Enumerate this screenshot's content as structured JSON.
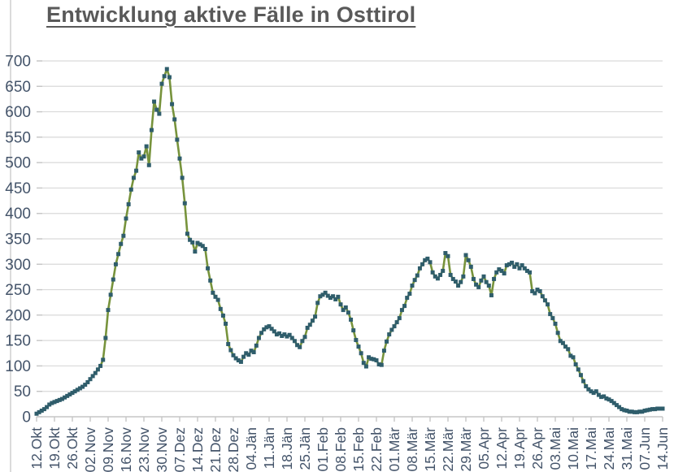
{
  "chart_data": {
    "type": "line",
    "title": "Entwicklung aktive Fälle in Osttirol",
    "xlabel": "",
    "ylabel": "",
    "ylim": [
      0,
      700
    ],
    "ytick_step": 50,
    "grid": true,
    "legend": "none",
    "marker_shape": "square",
    "x_tick_interval_days": 7,
    "x_tick_labels": [
      "12.Okt",
      "19.Okt",
      "26.Okt",
      "02.Nov",
      "09.Nov",
      "16.Nov",
      "23.Nov",
      "30.Nov",
      "07.Dez",
      "14.Dez",
      "21.Dez",
      "28.Dez",
      "04.Jän",
      "11.Jän",
      "18.Jän",
      "25.Jän",
      "01.Feb",
      "08.Feb",
      "15.Feb",
      "22.Feb",
      "01.Mär",
      "08.Mär",
      "15.Mär",
      "22.Mär",
      "29.Mär",
      "05.Apr",
      "12.Apr",
      "19.Apr",
      "26.Apr",
      "03.Mai",
      "10.Mai",
      "17.Mai",
      "24.Mai",
      "31.Mai",
      "07.Jun",
      "14.Jun"
    ],
    "values": [
      6,
      9,
      12,
      15,
      19,
      24,
      27,
      29,
      31,
      33,
      35,
      38,
      41,
      44,
      47,
      50,
      53,
      56,
      59,
      63,
      68,
      74,
      80,
      86,
      93,
      100,
      112,
      155,
      210,
      240,
      270,
      300,
      320,
      340,
      356,
      390,
      418,
      447,
      470,
      484,
      520,
      508,
      512,
      532,
      495,
      564,
      620,
      604,
      596,
      655,
      670,
      684,
      668,
      615,
      585,
      545,
      508,
      470,
      420,
      360,
      348,
      343,
      325,
      342,
      339,
      336,
      330,
      292,
      268,
      244,
      236,
      230,
      212,
      199,
      183,
      143,
      131,
      121,
      115,
      111,
      108,
      118,
      125,
      122,
      130,
      127,
      140,
      155,
      165,
      172,
      176,
      178,
      173,
      168,
      162,
      164,
      159,
      162,
      158,
      161,
      155,
      149,
      141,
      137,
      149,
      157,
      175,
      181,
      189,
      197,
      224,
      237,
      240,
      244,
      238,
      234,
      237,
      231,
      236,
      221,
      210,
      215,
      205,
      191,
      170,
      151,
      138,
      125,
      106,
      99,
      117,
      114,
      113,
      111,
      103,
      102,
      130,
      148,
      162,
      171,
      178,
      186,
      194,
      210,
      218,
      234,
      242,
      258,
      269,
      278,
      292,
      300,
      308,
      311,
      304,
      284,
      276,
      272,
      279,
      287,
      322,
      316,
      279,
      271,
      266,
      258,
      265,
      276,
      318,
      308,
      295,
      271,
      260,
      255,
      268,
      276,
      265,
      258,
      239,
      271,
      284,
      290,
      287,
      282,
      298,
      300,
      303,
      295,
      300,
      292,
      298,
      292,
      287,
      284,
      247,
      243,
      250,
      247,
      237,
      229,
      221,
      202,
      194,
      183,
      165,
      149,
      145,
      138,
      133,
      120,
      117,
      103,
      93,
      82,
      70,
      60,
      54,
      50,
      47,
      50,
      43,
      39,
      40,
      36,
      34,
      31,
      27,
      23,
      19,
      15,
      13,
      12,
      10,
      10,
      9,
      9,
      10,
      10,
      12,
      13,
      14,
      15,
      15,
      16,
      16,
      16
    ],
    "colors": {
      "line": "#77933C",
      "marker": "#2F5D6B",
      "axis_labels": "#44546A",
      "gridline": "#D9D9D9",
      "axis_line": "#C6C6C6",
      "title": "#595959"
    }
  }
}
